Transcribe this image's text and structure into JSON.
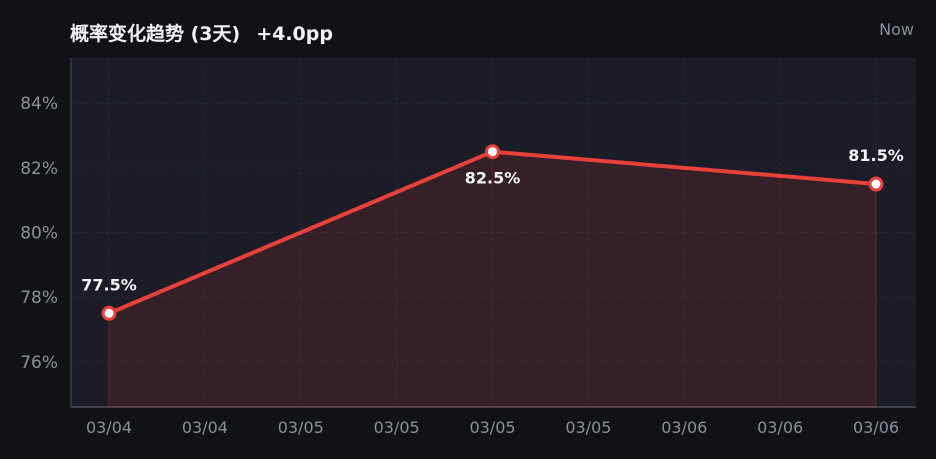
{
  "header": {
    "title": "概率变化趋势 (3天)",
    "delta": "+4.0pp",
    "now_label": "Now"
  },
  "colors": {
    "line": "#e8403a",
    "area": "#e8403a",
    "plot_bg": "#1b1c25",
    "grid": "#2a2c36"
  },
  "chart_data": {
    "type": "line",
    "title": "概率变化趋势 (3天)",
    "xlabel": "",
    "ylabel": "",
    "x_ticks": [
      "03/04",
      "03/04",
      "03/05",
      "03/05",
      "03/05",
      "03/05",
      "03/06",
      "03/06",
      "03/06"
    ],
    "x_range": [
      0,
      8
    ],
    "ylim": [
      74.6,
      85.4
    ],
    "y_ticks": [
      76,
      78,
      80,
      82,
      84
    ],
    "y_tick_labels": [
      "76%",
      "78%",
      "80%",
      "82%",
      "84%"
    ],
    "grid": true,
    "series": [
      {
        "x": [
          0,
          4,
          8
        ],
        "values": [
          77.5,
          82.5,
          81.5
        ],
        "labels": [
          "77.5%",
          "82.5%",
          "81.5%"
        ],
        "label_position": [
          "above",
          "below",
          "above"
        ]
      }
    ]
  }
}
